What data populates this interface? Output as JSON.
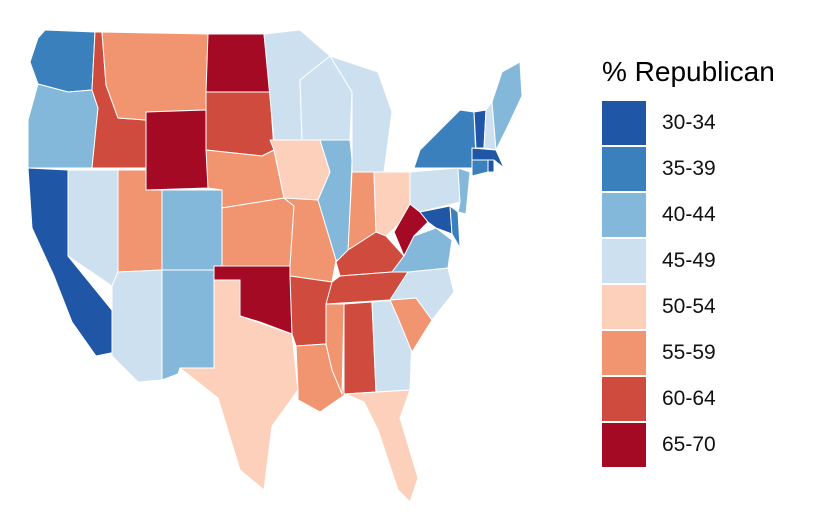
{
  "legend": {
    "title": "% Republican",
    "bins": [
      {
        "label": "30-34",
        "color": "#1f56a5"
      },
      {
        "label": "35-39",
        "color": "#3a80bd"
      },
      {
        "label": "40-44",
        "color": "#84b8da"
      },
      {
        "label": "45-49",
        "color": "#cde0ef"
      },
      {
        "label": "50-54",
        "color": "#fdd0bb"
      },
      {
        "label": "55-59",
        "color": "#f19470"
      },
      {
        "label": "60-64",
        "color": "#cf4b3e"
      },
      {
        "label": "65-70",
        "color": "#a50a25"
      }
    ]
  },
  "states": [
    {
      "name": "WA",
      "bin": 1
    },
    {
      "name": "OR",
      "bin": 2
    },
    {
      "name": "CA",
      "bin": 0
    },
    {
      "name": "ID",
      "bin": 6
    },
    {
      "name": "NV",
      "bin": 3
    },
    {
      "name": "MT",
      "bin": 5
    },
    {
      "name": "WY",
      "bin": 7
    },
    {
      "name": "UT",
      "bin": 5
    },
    {
      "name": "AZ",
      "bin": 3
    },
    {
      "name": "CO",
      "bin": 2
    },
    {
      "name": "NM",
      "bin": 2
    },
    {
      "name": "ND",
      "bin": 7
    },
    {
      "name": "SD",
      "bin": 6
    },
    {
      "name": "NE",
      "bin": 5
    },
    {
      "name": "KS",
      "bin": 5
    },
    {
      "name": "OK",
      "bin": 7
    },
    {
      "name": "TX",
      "bin": 4
    },
    {
      "name": "MN",
      "bin": 3
    },
    {
      "name": "IA",
      "bin": 4
    },
    {
      "name": "MO",
      "bin": 5
    },
    {
      "name": "AR",
      "bin": 6
    },
    {
      "name": "LA",
      "bin": 5
    },
    {
      "name": "WI",
      "bin": 3
    },
    {
      "name": "IL",
      "bin": 2
    },
    {
      "name": "MI",
      "bin": 3
    },
    {
      "name": "IN",
      "bin": 5
    },
    {
      "name": "OH",
      "bin": 4
    },
    {
      "name": "KY",
      "bin": 6
    },
    {
      "name": "TN",
      "bin": 6
    },
    {
      "name": "MS",
      "bin": 5
    },
    {
      "name": "AL",
      "bin": 6
    },
    {
      "name": "GA",
      "bin": 3
    },
    {
      "name": "FL",
      "bin": 4
    },
    {
      "name": "SC",
      "bin": 5
    },
    {
      "name": "NC",
      "bin": 3
    },
    {
      "name": "VA",
      "bin": 2
    },
    {
      "name": "WV",
      "bin": 7
    },
    {
      "name": "PA",
      "bin": 3
    },
    {
      "name": "NY",
      "bin": 1
    },
    {
      "name": "MD",
      "bin": 0
    },
    {
      "name": "DE",
      "bin": 1
    },
    {
      "name": "NJ",
      "bin": 2
    },
    {
      "name": "CT",
      "bin": 1
    },
    {
      "name": "RI",
      "bin": 0
    },
    {
      "name": "MA",
      "bin": 0
    },
    {
      "name": "VT",
      "bin": 0
    },
    {
      "name": "NH",
      "bin": 3
    },
    {
      "name": "ME",
      "bin": 2
    }
  ]
}
